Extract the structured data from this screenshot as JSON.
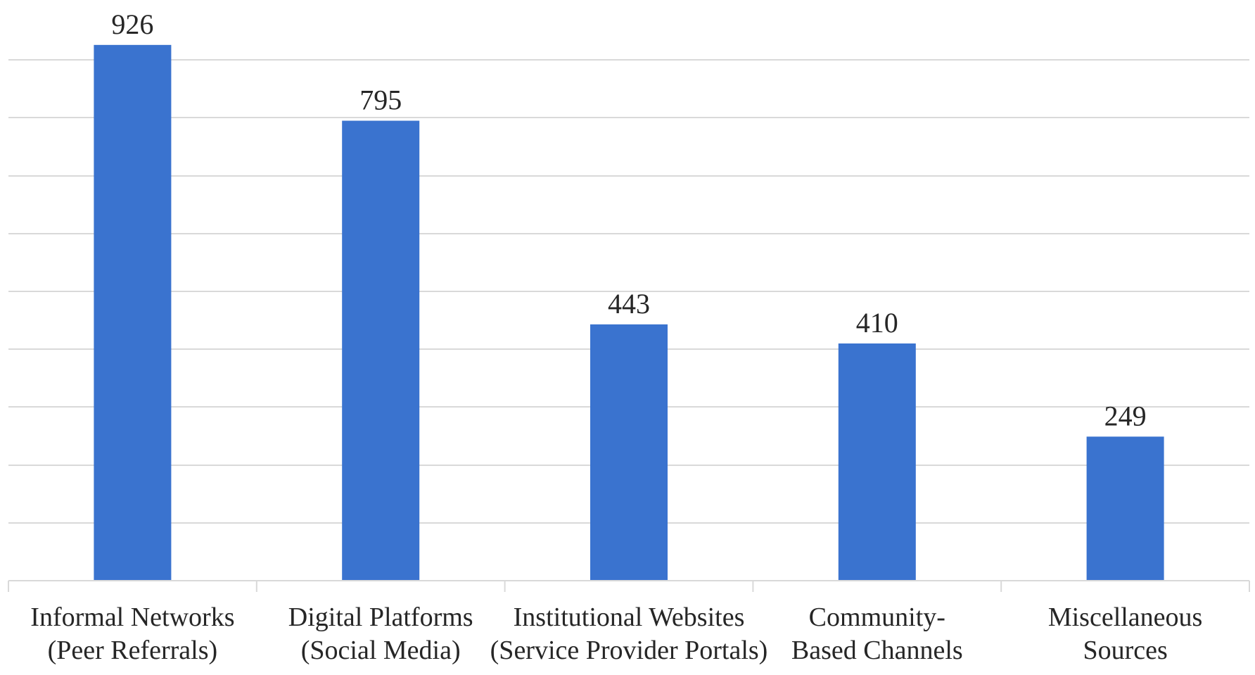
{
  "chart_data": {
    "type": "bar",
    "categories": [
      [
        "Informal Networks",
        "(Peer Referrals)"
      ],
      [
        "Digital Platforms",
        "(Social Media)"
      ],
      [
        "Institutional Websites",
        "(Service Provider Portals)"
      ],
      [
        "Community-",
        "Based Channels"
      ],
      [
        "Miscellaneous",
        "Sources"
      ]
    ],
    "values": [
      926,
      795,
      443,
      410,
      249
    ],
    "data_labels": [
      "926",
      "795",
      "443",
      "410",
      "249"
    ],
    "ylim": [
      0,
      1000
    ],
    "grid": true,
    "legend": "none",
    "colors": {
      "bar": "#3a73cf",
      "grid": "#d9d9d9",
      "text": "#262626"
    }
  }
}
